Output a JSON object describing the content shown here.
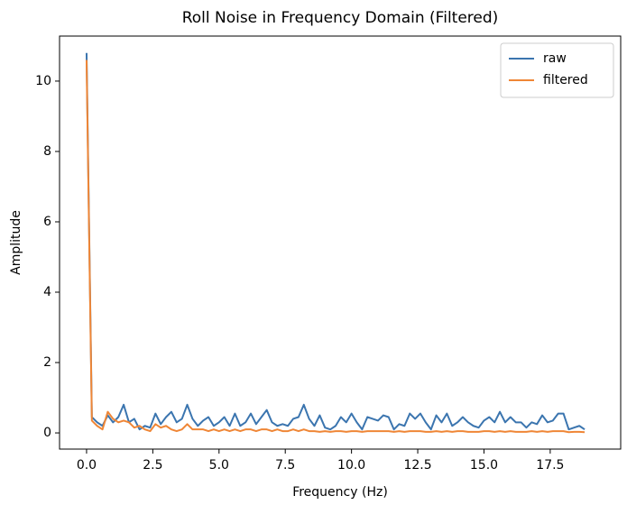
{
  "chart_data": {
    "type": "line",
    "title": "Roll Noise in Frequency Domain (Filtered)",
    "x_label": "Frequency (Hz)",
    "y_label": "Amplitude",
    "x": [
      0,
      0.2,
      0.4,
      0.6,
      0.8,
      1.0,
      1.2,
      1.4,
      1.6,
      1.8,
      2.0,
      2.2,
      2.4,
      2.6,
      2.8,
      3.0,
      3.2,
      3.4,
      3.6,
      3.8,
      4.0,
      4.2,
      4.4,
      4.6,
      4.8,
      5.0,
      5.2,
      5.4,
      5.6,
      5.8,
      6.0,
      6.2,
      6.4,
      6.6,
      6.8,
      7.0,
      7.2,
      7.4,
      7.6,
      7.8,
      8.0,
      8.2,
      8.4,
      8.6,
      8.8,
      9.0,
      9.2,
      9.4,
      9.6,
      9.8,
      10.0,
      10.2,
      10.4,
      10.6,
      10.8,
      11.0,
      11.2,
      11.4,
      11.6,
      11.8,
      12.0,
      12.2,
      12.4,
      12.6,
      12.8,
      13.0,
      13.2,
      13.4,
      13.6,
      13.8,
      14.0,
      14.2,
      14.4,
      14.6,
      14.8,
      15.0,
      15.2,
      15.4,
      15.6,
      15.8,
      16.0,
      16.2,
      16.4,
      16.6,
      16.8,
      17.0,
      17.2,
      17.4,
      17.6,
      17.8,
      18.0,
      18.2,
      18.4,
      18.6,
      18.8
    ],
    "series": [
      {
        "name": "raw",
        "color": "#3b75af",
        "values": [
          10.8,
          0.45,
          0.3,
          0.2,
          0.5,
          0.3,
          0.45,
          0.8,
          0.3,
          0.4,
          0.1,
          0.2,
          0.15,
          0.55,
          0.25,
          0.45,
          0.6,
          0.3,
          0.4,
          0.8,
          0.4,
          0.2,
          0.35,
          0.45,
          0.2,
          0.3,
          0.45,
          0.2,
          0.55,
          0.2,
          0.3,
          0.55,
          0.25,
          0.45,
          0.65,
          0.3,
          0.2,
          0.25,
          0.2,
          0.4,
          0.45,
          0.8,
          0.4,
          0.2,
          0.5,
          0.15,
          0.1,
          0.2,
          0.45,
          0.3,
          0.55,
          0.3,
          0.1,
          0.45,
          0.4,
          0.35,
          0.5,
          0.45,
          0.1,
          0.25,
          0.2,
          0.55,
          0.4,
          0.55,
          0.3,
          0.1,
          0.5,
          0.3,
          0.55,
          0.2,
          0.3,
          0.45,
          0.3,
          0.2,
          0.15,
          0.35,
          0.45,
          0.3,
          0.6,
          0.3,
          0.45,
          0.3,
          0.3,
          0.15,
          0.3,
          0.25,
          0.5,
          0.3,
          0.35,
          0.55,
          0.55,
          0.1,
          0.15,
          0.2,
          0.1
        ]
      },
      {
        "name": "filtered",
        "color": "#ef8636",
        "values": [
          10.6,
          0.35,
          0.2,
          0.1,
          0.6,
          0.4,
          0.3,
          0.35,
          0.3,
          0.15,
          0.2,
          0.1,
          0.05,
          0.25,
          0.15,
          0.2,
          0.1,
          0.05,
          0.1,
          0.25,
          0.1,
          0.1,
          0.1,
          0.05,
          0.1,
          0.05,
          0.1,
          0.05,
          0.1,
          0.05,
          0.1,
          0.1,
          0.05,
          0.1,
          0.1,
          0.05,
          0.1,
          0.05,
          0.05,
          0.1,
          0.05,
          0.1,
          0.05,
          0.05,
          0.03,
          0.05,
          0.03,
          0.05,
          0.05,
          0.03,
          0.05,
          0.05,
          0.03,
          0.05,
          0.05,
          0.05,
          0.05,
          0.05,
          0.03,
          0.05,
          0.03,
          0.05,
          0.05,
          0.05,
          0.03,
          0.03,
          0.05,
          0.03,
          0.05,
          0.03,
          0.05,
          0.05,
          0.03,
          0.03,
          0.03,
          0.05,
          0.05,
          0.03,
          0.05,
          0.03,
          0.05,
          0.03,
          0.03,
          0.03,
          0.05,
          0.03,
          0.05,
          0.03,
          0.05,
          0.05,
          0.05,
          0.02,
          0.03,
          0.03,
          0.02
        ]
      }
    ],
    "xlim": [
      -1.02,
      20.16
    ],
    "ylim": [
      -0.46,
      11.28
    ],
    "xticks": [
      {
        "value": 0,
        "label": "0.0"
      },
      {
        "value": 2.5,
        "label": "2.5"
      },
      {
        "value": 5,
        "label": "5.0"
      },
      {
        "value": 7.5,
        "label": "7.5"
      },
      {
        "value": 10,
        "label": "10.0"
      },
      {
        "value": 12.5,
        "label": "12.5"
      },
      {
        "value": 15,
        "label": "15.0"
      },
      {
        "value": 17.5,
        "label": "17.5"
      }
    ],
    "yticks": [
      0,
      2,
      4,
      6,
      8,
      10
    ],
    "legend": "upper right",
    "grid": false
  }
}
